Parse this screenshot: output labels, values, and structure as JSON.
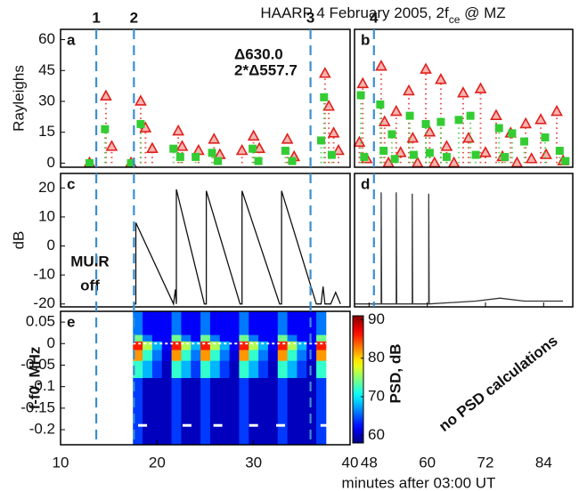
{
  "title": [
    "HAARP 4 February 2005, 2f",
    "ce",
    " @ MZ"
  ],
  "xlabel": "minutes after 03:00 UT",
  "note": "no PSD calculations",
  "events": {
    "labels": [
      "1",
      "2",
      "3",
      "4"
    ],
    "x": [
      13.7,
      17.6,
      35.9,
      49.0
    ],
    "color": "#3a8fd0"
  },
  "chart_data": [
    {
      "type": "scatter",
      "label": "a",
      "ylabel": "Rayleighs",
      "xlim": [
        10,
        40
      ],
      "ylim": [
        -2,
        65
      ],
      "yticks": [
        0,
        15,
        30,
        45,
        60
      ],
      "series": [
        {
          "name": "Δ630.0",
          "color": "#e0201c",
          "marker": "triangle",
          "x": [
            13.0,
            14.7,
            15.3,
            17.3,
            18.3,
            18.8,
            19.5,
            22.2,
            22.6,
            24.3,
            25.9,
            26.5,
            28.8,
            30.0,
            30.6,
            33.5,
            34.2,
            37.4,
            37.8,
            38.3,
            38.8
          ],
          "values": [
            0,
            32.5,
            8,
            0,
            30,
            17,
            7,
            15.5,
            8,
            6,
            11.5,
            4,
            6,
            13,
            7,
            11.5,
            3,
            43.5,
            27.5,
            14.5,
            6
          ]
        },
        {
          "name": "2*Δ557.7",
          "color": "#33cc33",
          "marker": "square",
          "x": [
            13.0,
            14.6,
            17.3,
            18.3,
            21.7,
            22.4,
            24.0,
            25.7,
            26.3,
            29.9,
            30.5,
            33.3,
            34.0,
            37.0,
            37.3,
            38.1
          ],
          "values": [
            0,
            16.5,
            0,
            19,
            7,
            3,
            3,
            5,
            1,
            7,
            1,
            6,
            1,
            11,
            32,
            4
          ]
        }
      ]
    },
    {
      "type": "scatter",
      "label": "b",
      "xlim": [
        45,
        90
      ],
      "ylim": [
        -2,
        65
      ],
      "series": [
        {
          "color": "#e0201c",
          "marker": "triangle",
          "x": [
            46.0,
            46.7,
            47.5,
            50.5,
            51.2,
            52.0,
            53.6,
            54.5,
            56.2,
            57.0,
            58.0,
            59.7,
            60.5,
            61.5,
            62.8,
            64.0,
            65.5,
            67.4,
            68.5,
            71.0,
            72.0,
            74.2,
            75.5,
            77.2,
            78.5,
            80.3,
            81.5,
            83.4,
            84.5,
            86.7,
            88.0
          ],
          "values": [
            10,
            38.5,
            2,
            47,
            20,
            0,
            25,
            5,
            35,
            12,
            0,
            45.5,
            15,
            0,
            40.5,
            8,
            0,
            34,
            12,
            36,
            5,
            23,
            3,
            14.5,
            0,
            19,
            2,
            21,
            4,
            25,
            1
          ]
        },
        {
          "color": "#33cc33",
          "marker": "square",
          "x": [
            46.3,
            47.0,
            50.3,
            51.0,
            52.7,
            53.3,
            56.4,
            57.2,
            59.7,
            60.5,
            62.8,
            64.0,
            66.5,
            68.9,
            70.0,
            74.8,
            76.0,
            77.5,
            80.0,
            84.3,
            87.3,
            88.5
          ],
          "values": [
            33,
            3,
            28.5,
            6,
            14,
            2,
            23,
            4,
            19,
            5,
            20,
            3,
            21,
            23,
            4,
            17,
            3,
            14.5,
            10.5,
            12.5,
            6,
            1
          ]
        }
      ]
    },
    {
      "type": "line",
      "label": "c",
      "ylabel": "dB",
      "xlim": [
        10,
        40
      ],
      "ylim": [
        -21,
        25
      ],
      "yticks": [
        -20,
        -10,
        0,
        10,
        20
      ],
      "color": "#111111",
      "annotation": [
        "MUIR",
        "off"
      ],
      "x": [
        17.6,
        17.8,
        17.8,
        21.7,
        21.9,
        22.0,
        22.0,
        24.9,
        25.1,
        25.1,
        28.6,
        28.8,
        28.8,
        32.7,
        32.9,
        32.9,
        36.5,
        37.0,
        37.2,
        37.4,
        38.0,
        38.5,
        39.0
      ],
      "values": [
        -20,
        -20,
        8,
        -20,
        -15,
        -20,
        19.5,
        -20,
        -20,
        19,
        -20,
        -20,
        19,
        -20,
        -20,
        19,
        -20,
        -20,
        -14,
        -20,
        -20,
        -16,
        -20
      ]
    },
    {
      "type": "line",
      "label": "d",
      "xlim": [
        45,
        90
      ],
      "ylim": [
        -21,
        25
      ],
      "xticks": [
        48,
        60,
        72,
        84
      ],
      "color": "#333333",
      "x": [
        45,
        50.5,
        50.5,
        50.6,
        53.6,
        53.6,
        53.7,
        56.9,
        56.9,
        57.0,
        60.3,
        60.3,
        60.4,
        70,
        75,
        80,
        88
      ],
      "values": [
        -20,
        -20,
        18.5,
        -20,
        -20,
        18.5,
        -20,
        -20,
        18,
        -20,
        -20,
        18,
        -20,
        -19,
        -18,
        -19,
        -19
      ]
    },
    {
      "type": "heatmap",
      "label": "e",
      "ylabel": "f-f0, MHz",
      "xlim": [
        10,
        40
      ],
      "ylim": [
        -0.235,
        0.075
      ],
      "yticks": [
        0.05,
        0,
        -0.05,
        -0.1,
        -0.15,
        -0.2
      ],
      "xticks": [
        10,
        20,
        30,
        40
      ],
      "colormap": "jet",
      "clim": [
        58,
        91
      ],
      "cticks": [
        60,
        70,
        80,
        90
      ],
      "clabel": "PSD, dB",
      "x_edges": [
        17.5,
        18.5,
        19.5,
        20.5,
        21.5,
        22.5,
        23.5,
        24.5,
        25.5,
        26.5,
        27.5,
        28.5,
        29.5,
        30.5,
        31.5,
        32.5,
        33.5,
        34.5,
        35.5,
        36.5,
        37.5
      ],
      "y_edges": [
        0.075,
        0.02,
        0.005,
        -0.015,
        -0.04,
        -0.08,
        -0.235
      ],
      "z": [
        [
          66,
          62,
          62,
          62,
          66,
          62,
          62,
          66,
          62,
          62,
          62,
          66,
          62,
          62,
          62,
          66,
          62,
          62,
          62,
          66
        ],
        [
          74,
          66,
          62,
          62,
          74,
          66,
          62,
          74,
          66,
          62,
          62,
          74,
          66,
          62,
          62,
          74,
          66,
          62,
          62,
          74
        ],
        [
          86,
          76,
          68,
          62,
          86,
          76,
          68,
          86,
          76,
          68,
          62,
          86,
          76,
          68,
          62,
          86,
          76,
          68,
          62,
          86
        ],
        [
          82,
          72,
          66,
          61,
          82,
          72,
          66,
          82,
          72,
          66,
          61,
          82,
          72,
          66,
          61,
          82,
          72,
          66,
          61,
          82
        ],
        [
          72,
          68,
          64,
          60,
          72,
          68,
          64,
          72,
          68,
          64,
          60,
          72,
          68,
          64,
          60,
          72,
          68,
          64,
          60,
          72
        ],
        [
          64,
          60,
          60,
          60,
          64,
          60,
          60,
          64,
          60,
          60,
          60,
          64,
          60,
          60,
          60,
          64,
          60,
          60,
          60,
          64
        ]
      ],
      "ref_line": 0,
      "markers": {
        "y": -0.19,
        "x": [
          18.5,
          23.1,
          26.3,
          30.0,
          32.8,
          37.4
        ]
      }
    }
  ]
}
